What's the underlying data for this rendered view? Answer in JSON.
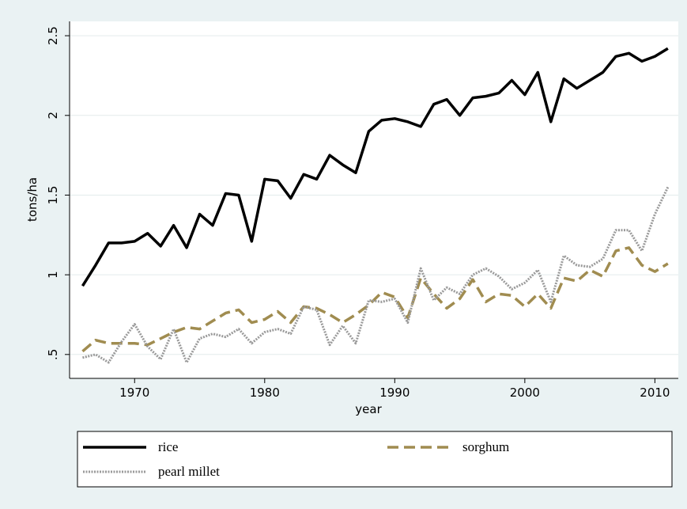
{
  "chart_data": {
    "type": "line",
    "y_label": "tons/ha",
    "x_label": "year",
    "x": [
      1966,
      1967,
      1968,
      1969,
      1970,
      1971,
      1972,
      1973,
      1974,
      1975,
      1976,
      1977,
      1978,
      1979,
      1980,
      1981,
      1982,
      1983,
      1984,
      1985,
      1986,
      1987,
      1988,
      1989,
      1990,
      1991,
      1992,
      1993,
      1994,
      1995,
      1996,
      1997,
      1998,
      1999,
      2000,
      2001,
      2002,
      2003,
      2004,
      2005,
      2006,
      2007,
      2008,
      2009,
      2010,
      2011
    ],
    "series": [
      {
        "name": "rice",
        "color": "#000000",
        "dash": "solid",
        "values": [
          0.93,
          1.06,
          1.2,
          1.2,
          1.21,
          1.26,
          1.18,
          1.31,
          1.17,
          1.38,
          1.31,
          1.51,
          1.5,
          1.21,
          1.6,
          1.59,
          1.48,
          1.63,
          1.6,
          1.75,
          1.69,
          1.64,
          1.9,
          1.97,
          1.98,
          1.96,
          1.93,
          2.07,
          2.1,
          2.0,
          2.11,
          2.12,
          2.14,
          2.22,
          2.13,
          2.27,
          1.96,
          2.23,
          2.17,
          2.22,
          2.27,
          2.37,
          2.39,
          2.34,
          2.37,
          2.42
        ]
      },
      {
        "name": "sorghum",
        "color": "#a08c50",
        "dash": "dashed",
        "values": [
          0.52,
          0.59,
          0.57,
          0.57,
          0.57,
          0.56,
          0.6,
          0.64,
          0.67,
          0.66,
          0.71,
          0.76,
          0.78,
          0.7,
          0.72,
          0.77,
          0.7,
          0.8,
          0.79,
          0.75,
          0.7,
          0.75,
          0.81,
          0.89,
          0.86,
          0.73,
          0.98,
          0.88,
          0.79,
          0.85,
          0.97,
          0.83,
          0.88,
          0.87,
          0.8,
          0.88,
          0.79,
          0.98,
          0.96,
          1.03,
          0.99,
          1.15,
          1.17,
          1.06,
          1.02,
          1.07
        ]
      },
      {
        "name": "pearl millet",
        "color": "#9a9a9a",
        "dash": "dotted",
        "values": [
          0.48,
          0.5,
          0.45,
          0.58,
          0.69,
          0.55,
          0.47,
          0.66,
          0.45,
          0.6,
          0.63,
          0.61,
          0.66,
          0.57,
          0.64,
          0.66,
          0.63,
          0.8,
          0.78,
          0.56,
          0.68,
          0.57,
          0.84,
          0.83,
          0.85,
          0.7,
          1.04,
          0.84,
          0.92,
          0.88,
          1.0,
          1.04,
          0.99,
          0.91,
          0.95,
          1.03,
          0.83,
          1.12,
          1.06,
          1.05,
          1.1,
          1.28,
          1.28,
          1.15,
          1.38,
          1.55
        ]
      }
    ],
    "xlim": [
      1965,
      2011.8
    ],
    "xticks": [
      1970,
      1980,
      1990,
      2000,
      2010
    ],
    "ylim": [
      0.35,
      2.59
    ],
    "yticks": [
      {
        "value": 0.5,
        "label": ".5"
      },
      1,
      1.5,
      2,
      2.5
    ],
    "grid": true,
    "legend": "bottom"
  }
}
